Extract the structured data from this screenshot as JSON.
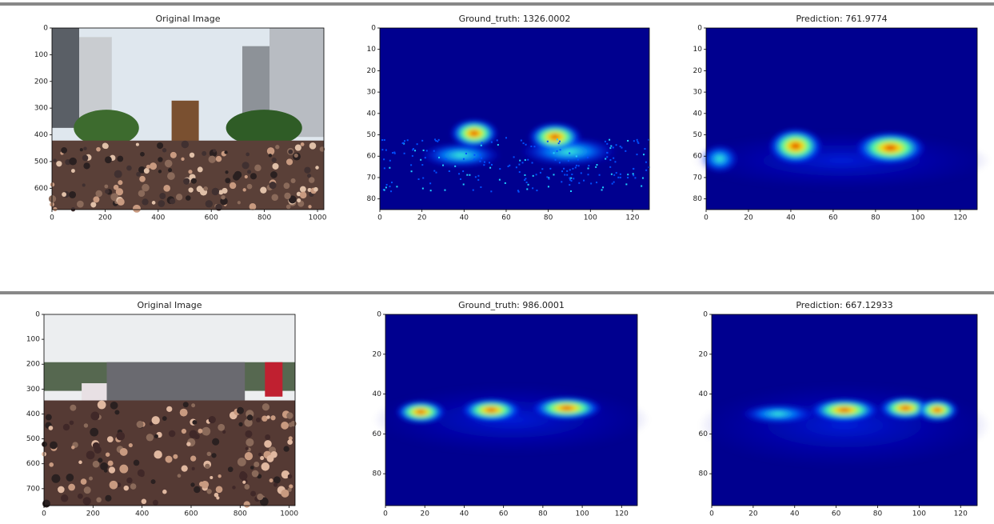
{
  "rows": [
    {
      "panels": [
        {
          "title": "Original Image",
          "xlim": [
            0,
            1024
          ],
          "ylim": [
            0,
            680
          ],
          "xticks": [
            0,
            200,
            400,
            600,
            800,
            1000
          ],
          "yticks": [
            0,
            100,
            200,
            300,
            400,
            500,
            600
          ]
        },
        {
          "title": "Ground_truth: 1326.0002",
          "xlim": [
            0,
            128
          ],
          "ylim": [
            0,
            85
          ],
          "xticks": [
            0,
            20,
            40,
            60,
            80,
            100,
            120
          ],
          "yticks": [
            0,
            10,
            20,
            30,
            40,
            50,
            60,
            70,
            80
          ]
        },
        {
          "title": "Prediction: 761.9774",
          "xlim": [
            0,
            128
          ],
          "ylim": [
            0,
            85
          ],
          "xticks": [
            0,
            20,
            40,
            60,
            80,
            100,
            120
          ],
          "yticks": [
            0,
            10,
            20,
            30,
            40,
            50,
            60,
            70,
            80
          ]
        }
      ]
    },
    {
      "panels": [
        {
          "title": "Original Image",
          "xlim": [
            0,
            1024
          ],
          "ylim": [
            0,
            768
          ],
          "xticks": [
            0,
            200,
            400,
            600,
            800,
            1000
          ],
          "yticks": [
            0,
            100,
            200,
            300,
            400,
            500,
            600,
            700
          ]
        },
        {
          "title": "Ground_truth: 986.0001",
          "xlim": [
            0,
            128
          ],
          "ylim": [
            0,
            96
          ],
          "xticks": [
            0,
            20,
            40,
            60,
            80,
            100,
            120
          ],
          "yticks": [
            0,
            20,
            40,
            60,
            80
          ]
        },
        {
          "title": "Prediction: 667.12933",
          "xlim": [
            0,
            128
          ],
          "ylim": [
            0,
            96
          ],
          "xticks": [
            0,
            20,
            40,
            60,
            80,
            100,
            120
          ],
          "yticks": [
            0,
            20,
            40,
            60,
            80
          ]
        }
      ]
    }
  ]
}
